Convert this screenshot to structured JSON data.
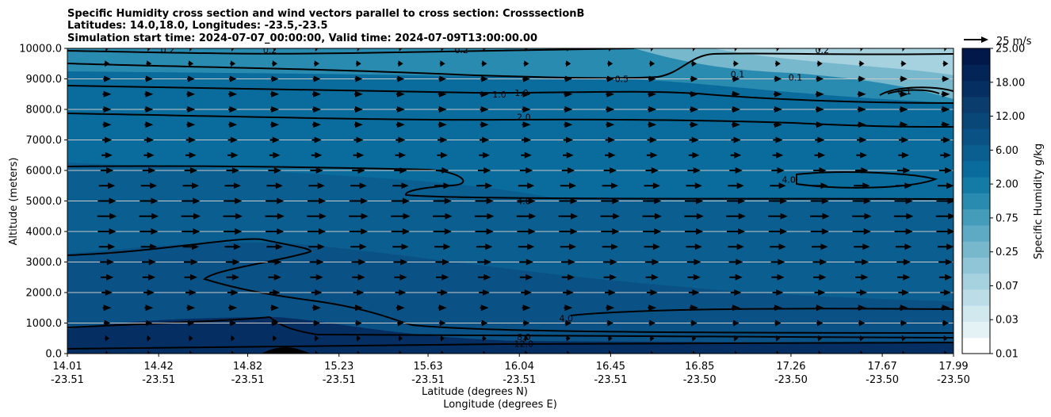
{
  "chart_data": {
    "type": "heatmap",
    "title_lines": [
      "Specific Humidity cross section and wind vectors parallel to cross section: CrosssectionB",
      "Latitudes: 14.0,18.0, Longitudes: -23.5,-23.5",
      "Simulation start time: 2024-07-07_00:00:00, Valid time: 2024-07-09T13:00:00.00"
    ],
    "ylabel": "Altitude (meters)",
    "xlabel_lat": "Latitude (degrees N)",
    "xlabel_lon": "Longitude (degrees E)",
    "ylim": [
      0,
      10000
    ],
    "xlim": [
      14.01,
      17.99
    ],
    "y_ticks": [
      0,
      1000,
      2000,
      3000,
      4000,
      5000,
      6000,
      7000,
      8000,
      9000,
      10000
    ],
    "y_tick_labels": [
      "0.0",
      "1000.0",
      "2000.0",
      "3000.0",
      "4000.0",
      "5000.0",
      "6000.0",
      "7000.0",
      "8000.0",
      "9000.0",
      "10000.0"
    ],
    "x_ticks_lat": [
      14.01,
      14.42,
      14.82,
      15.23,
      15.63,
      16.04,
      16.45,
      16.85,
      17.26,
      17.67,
      17.99
    ],
    "x_tick_labels_lat": [
      "14.01",
      "14.42",
      "14.82",
      "15.23",
      "15.63",
      "16.04",
      "16.45",
      "16.85",
      "17.26",
      "17.67",
      "17.99"
    ],
    "x_tick_labels_lon": [
      "-23.51",
      "-23.51",
      "-23.51",
      "-23.51",
      "-23.51",
      "-23.51",
      "-23.51",
      "-23.50",
      "-23.50",
      "-23.50",
      "-23.50"
    ],
    "colorbar": {
      "label": "Specific Humidity g/kg",
      "levels": [
        0.01,
        0.02,
        0.03,
        0.05,
        0.07,
        0.1,
        0.25,
        0.5,
        0.75,
        1.0,
        2.0,
        4.0,
        6.0,
        8.0,
        12.0,
        15.0,
        18.0,
        20.0,
        25.0
      ],
      "tick_values": [
        0.01,
        0.03,
        0.07,
        0.25,
        0.75,
        2.0,
        6.0,
        12.0,
        18.0,
        25.0
      ],
      "tick_labels": [
        "0.01",
        "0.03",
        "0.07",
        "0.25",
        "0.75",
        "2.00",
        "6.00",
        "12.00",
        "18.00",
        "25.00"
      ],
      "colors": [
        "#ffffff",
        "#e5f2f5",
        "#d1e8ee",
        "#bcdde7",
        "#a6d1df",
        "#8fc5d6",
        "#77b8cd",
        "#5eaac4",
        "#449bba",
        "#2a8bb0",
        "#137ba5",
        "#0a6c9c",
        "#0a5e90",
        "#0a5285",
        "#0a4779",
        "#0a3d6e",
        "#052f63",
        "#032457",
        "#02174a"
      ]
    },
    "contour_labels": [
      {
        "text": "0.2",
        "lat": 14.46,
        "alt": 9950
      },
      {
        "text": "0.2",
        "lat": 14.92,
        "alt": 9950
      },
      {
        "text": "0.2",
        "lat": 15.78,
        "alt": 9950
      },
      {
        "text": "0.2",
        "lat": 17.4,
        "alt": 9950
      },
      {
        "text": "0.5",
        "lat": 16.5,
        "alt": 9000
      },
      {
        "text": "1.0",
        "lat": 15.95,
        "alt": 8500
      },
      {
        "text": "1.0",
        "lat": 16.05,
        "alt": 8550
      },
      {
        "text": "2.0",
        "lat": 16.06,
        "alt": 7750
      },
      {
        "text": "4.0",
        "lat": 16.06,
        "alt": 5000
      },
      {
        "text": "4.0",
        "lat": 16.25,
        "alt": 1150
      },
      {
        "text": "4.0",
        "lat": 17.25,
        "alt": 5700
      },
      {
        "text": "8.0",
        "lat": 16.06,
        "alt": 550
      },
      {
        "text": "12.0",
        "lat": 16.06,
        "alt": 330
      },
      {
        "text": "0.1",
        "lat": 17.02,
        "alt": 9150
      },
      {
        "text": "0.1",
        "lat": 17.28,
        "alt": 9050
      },
      {
        "text": "0.1",
        "lat": 17.77,
        "alt": 8600
      }
    ],
    "wind_reference": {
      "label": "25 m/s",
      "speed": 25
    },
    "wind_profile": {
      "alt": [
        0,
        500,
        1000,
        1500,
        2000,
        2500,
        3000,
        3500,
        4000,
        4500,
        5000,
        5500,
        6000,
        6500,
        7000,
        7500,
        8000,
        8500,
        9000,
        9500,
        10000
      ],
      "speed": [
        2,
        4,
        6,
        8,
        10,
        12,
        13,
        15,
        17,
        18,
        17,
        15,
        12,
        10,
        9,
        8,
        8,
        8,
        7,
        5,
        2
      ]
    }
  }
}
